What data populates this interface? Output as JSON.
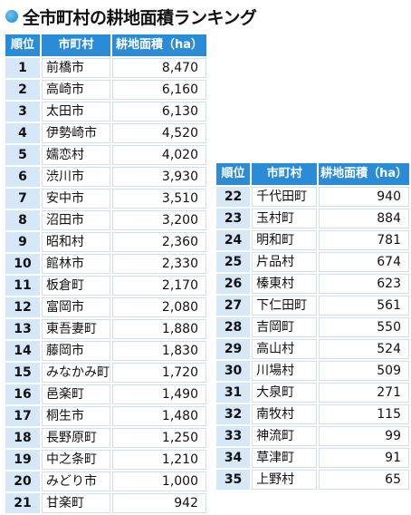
{
  "title": "全市町村の耕地面積ランキング",
  "headers": {
    "rank": "順位",
    "name": "市町村",
    "area": "耕地面積（ha）"
  },
  "left_rows": [
    {
      "rank": "1",
      "name": "前橋市",
      "area": "8,470"
    },
    {
      "rank": "2",
      "name": "高崎市",
      "area": "6,160"
    },
    {
      "rank": "3",
      "name": "太田市",
      "area": "6,130"
    },
    {
      "rank": "4",
      "name": "伊勢崎市",
      "area": "4,520"
    },
    {
      "rank": "5",
      "name": "嬬恋村",
      "area": "4,020"
    },
    {
      "rank": "6",
      "name": "渋川市",
      "area": "3,930"
    },
    {
      "rank": "7",
      "name": "安中市",
      "area": "3,510"
    },
    {
      "rank": "8",
      "name": "沼田市",
      "area": "3,200"
    },
    {
      "rank": "9",
      "name": "昭和村",
      "area": "2,360"
    },
    {
      "rank": "10",
      "name": "館林市",
      "area": "2,330"
    },
    {
      "rank": "11",
      "name": "板倉町",
      "area": "2,170"
    },
    {
      "rank": "12",
      "name": "富岡市",
      "area": "2,080"
    },
    {
      "rank": "13",
      "name": "東吾妻町",
      "area": "1,880"
    },
    {
      "rank": "14",
      "name": "藤岡市",
      "area": "1,830"
    },
    {
      "rank": "15",
      "name": "みなかみ町",
      "area": "1,720"
    },
    {
      "rank": "16",
      "name": "邑楽町",
      "area": "1,490"
    },
    {
      "rank": "17",
      "name": "桐生市",
      "area": "1,480"
    },
    {
      "rank": "18",
      "name": "長野原町",
      "area": "1,250"
    },
    {
      "rank": "19",
      "name": "中之条町",
      "area": "1,210"
    },
    {
      "rank": "20",
      "name": "みどり市",
      "area": "1,000"
    },
    {
      "rank": "21",
      "name": "甘楽町",
      "area": "942"
    }
  ],
  "right_rows": [
    {
      "rank": "22",
      "name": "千代田町",
      "area": "940"
    },
    {
      "rank": "23",
      "name": "玉村町",
      "area": "884"
    },
    {
      "rank": "24",
      "name": "明和町",
      "area": "781"
    },
    {
      "rank": "25",
      "name": "片品村",
      "area": "674"
    },
    {
      "rank": "26",
      "name": "榛東村",
      "area": "623"
    },
    {
      "rank": "27",
      "name": "下仁田町",
      "area": "561"
    },
    {
      "rank": "28",
      "name": "吉岡町",
      "area": "550"
    },
    {
      "rank": "29",
      "name": "高山村",
      "area": "524"
    },
    {
      "rank": "30",
      "name": "川場村",
      "area": "509"
    },
    {
      "rank": "31",
      "name": "大泉町",
      "area": "271"
    },
    {
      "rank": "32",
      "name": "南牧村",
      "area": "115"
    },
    {
      "rank": "33",
      "name": "神流町",
      "area": "99"
    },
    {
      "rank": "34",
      "name": "草津町",
      "area": "91"
    },
    {
      "rank": "35",
      "name": "上野村",
      "area": "65"
    }
  ]
}
